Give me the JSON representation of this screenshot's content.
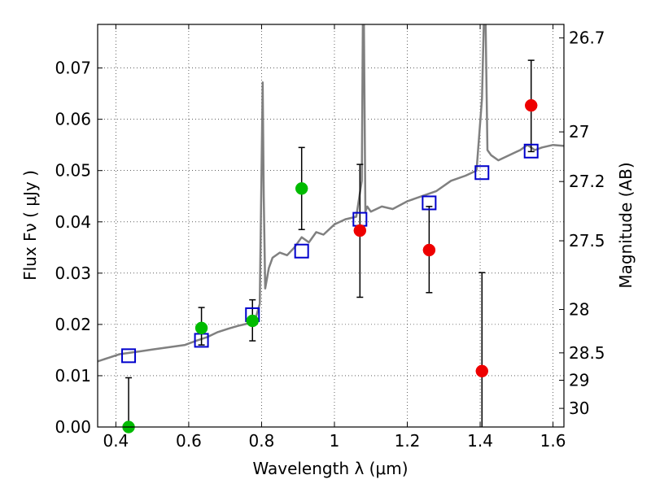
{
  "chart_data": {
    "type": "scatter",
    "xlabel": "Wavelength  λ (μm)",
    "ylabel": "Flux  Fν  ( μJy )",
    "ylabel_right": "Magnitude (AB)",
    "xlim": [
      0.35,
      1.63
    ],
    "ylim": [
      0.0,
      0.0785
    ],
    "grid": true,
    "x_ticks": [
      0.4,
      0.6,
      0.8,
      1.0,
      1.2,
      1.4,
      1.6
    ],
    "x_tick_labels": [
      "0.4",
      "0.6",
      "0.8",
      "1",
      "1.2",
      "1.4",
      "1.6"
    ],
    "y_ticks": [
      0.0,
      0.01,
      0.02,
      0.03,
      0.04,
      0.05,
      0.06,
      0.07
    ],
    "y_tick_labels": [
      "0.00",
      "0.01",
      "0.02",
      "0.03",
      "0.04",
      "0.05",
      "0.06",
      "0.07"
    ],
    "right_ticks": [
      {
        "label": "26.7",
        "mag": 26.7
      },
      {
        "label": "27",
        "mag": 27.0
      },
      {
        "label": "27.2",
        "mag": 27.2
      },
      {
        "label": "27.5",
        "mag": 27.5
      },
      {
        "label": "28",
        "mag": 28.0
      },
      {
        "label": "28.5",
        "mag": 28.5
      },
      {
        "label": "29",
        "mag": 29.0
      },
      {
        "label": "30",
        "mag": 30.0
      }
    ],
    "model_spectrum": {
      "color": "#808080",
      "x": [
        0.35,
        0.38,
        0.41,
        0.44,
        0.47,
        0.5,
        0.53,
        0.56,
        0.59,
        0.62,
        0.65,
        0.68,
        0.71,
        0.74,
        0.77,
        0.785,
        0.795,
        0.8,
        0.803,
        0.806,
        0.81,
        0.82,
        0.83,
        0.85,
        0.87,
        0.89,
        0.91,
        0.93,
        0.95,
        0.97,
        1.0,
        1.03,
        1.06,
        1.075,
        1.078,
        1.081,
        1.085,
        1.09,
        1.1,
        1.13,
        1.16,
        1.2,
        1.24,
        1.28,
        1.32,
        1.36,
        1.39,
        1.405,
        1.41,
        1.415,
        1.42,
        1.43,
        1.45,
        1.48,
        1.51,
        1.53,
        1.55,
        1.57,
        1.6,
        1.63
      ],
      "y": [
        0.0128,
        0.0135,
        0.0142,
        0.0145,
        0.0148,
        0.0151,
        0.0154,
        0.0157,
        0.016,
        0.0168,
        0.0175,
        0.0185,
        0.0192,
        0.0198,
        0.0203,
        0.0215,
        0.024,
        0.05,
        0.0672,
        0.045,
        0.027,
        0.031,
        0.033,
        0.034,
        0.0335,
        0.035,
        0.037,
        0.036,
        0.038,
        0.0375,
        0.0395,
        0.0405,
        0.041,
        0.048,
        0.0785,
        0.0785,
        0.042,
        0.043,
        0.042,
        0.043,
        0.0425,
        0.044,
        0.045,
        0.046,
        0.048,
        0.049,
        0.05,
        0.064,
        0.0785,
        0.0785,
        0.054,
        0.053,
        0.052,
        0.053,
        0.054,
        0.055,
        0.054,
        0.0545,
        0.055,
        0.0548
      ]
    },
    "series": [
      {
        "name": "",
        "marker": "square",
        "color": "#0000cc",
        "x": [
          0.435,
          0.635,
          0.775,
          0.91,
          1.07,
          1.26,
          1.405,
          1.54
        ],
        "y": [
          0.0139,
          0.0169,
          0.0219,
          0.0343,
          0.0405,
          0.0437,
          0.0496,
          0.0538
        ]
      },
      {
        "name": "",
        "marker": "circle",
        "color": "#00bb00",
        "x": [
          0.435,
          0.635,
          0.775,
          0.91
        ],
        "y": [
          0.0,
          0.0193,
          0.0207,
          0.0465
        ],
        "err_low": [
          0.0,
          0.016,
          0.0168,
          0.0385
        ],
        "err_high": [
          0.0096,
          0.0233,
          0.0248,
          0.0545
        ]
      },
      {
        "name": "",
        "marker": "circle",
        "color": "#ee0000",
        "x": [
          1.07,
          1.26,
          1.405,
          1.54
        ],
        "y": [
          0.0383,
          0.0345,
          0.0109,
          0.0627
        ],
        "err_low": [
          0.0253,
          0.0262,
          0.0,
          0.0537
        ],
        "err_high": [
          0.0512,
          0.043,
          0.0301,
          0.0715
        ]
      }
    ]
  }
}
